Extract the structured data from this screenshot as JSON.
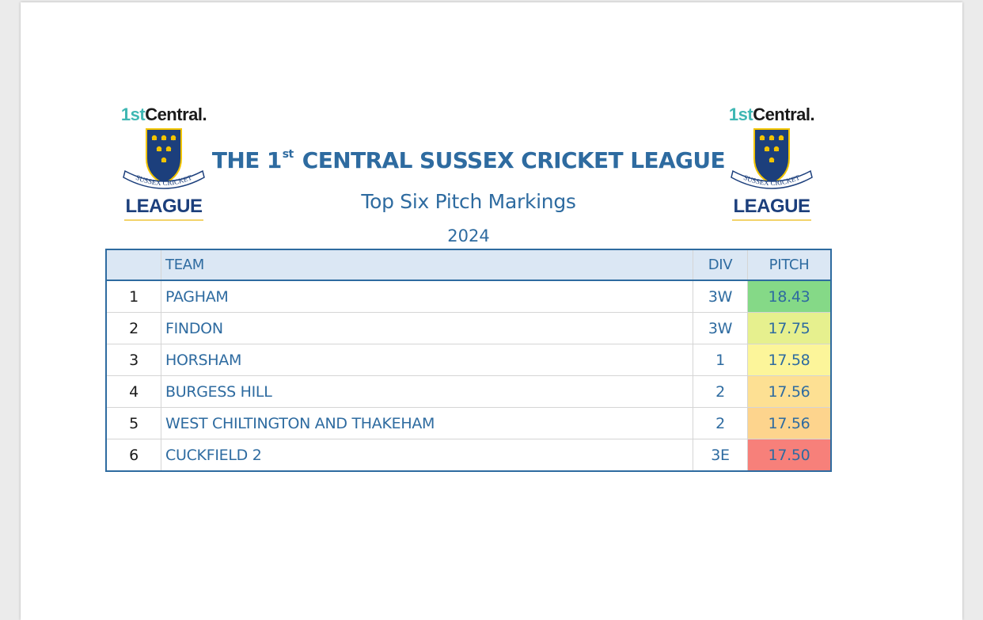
{
  "logo": {
    "brand_prefix": "1st",
    "brand_name": "Central.",
    "crest_text": "SUSSEX CRICKET",
    "league_word": "LEAGUE",
    "colors": {
      "teal": "#3fb7b3",
      "navy": "#1c3f7c",
      "gold": "#f2c400",
      "ribbon": "#ffffff"
    }
  },
  "header": {
    "title_pre": "THE 1",
    "title_sup": "st",
    "title_post": "CENTRAL SUSSEX CRICKET LEAGUE",
    "subtitle": "Top Six Pitch Markings",
    "year": "2024"
  },
  "table": {
    "columns": {
      "rank": "",
      "team": "TEAM",
      "div": "DIV",
      "pitch": "PITCH"
    },
    "rows": [
      {
        "rank": "1",
        "team": "PAGHAM",
        "div": "3W",
        "pitch": "18.43",
        "color": "#85d987"
      },
      {
        "rank": "2",
        "team": "FINDON",
        "div": "3W",
        "pitch": "17.75",
        "color": "#e6f08e"
      },
      {
        "rank": "3",
        "team": "HORSHAM",
        "div": "1",
        "pitch": "17.58",
        "color": "#fcf59a"
      },
      {
        "rank": "4",
        "team": "BURGESS HILL",
        "div": "2",
        "pitch": "17.56",
        "color": "#fde093"
      },
      {
        "rank": "5",
        "team": "WEST CHILTINGTON AND THAKEHAM",
        "div": "2",
        "pitch": "17.56",
        "color": "#fdd48d"
      },
      {
        "rank": "6",
        "team": "CUCKFIELD 2",
        "div": "3E",
        "pitch": "17.50",
        "color": "#f7807a"
      }
    ]
  }
}
